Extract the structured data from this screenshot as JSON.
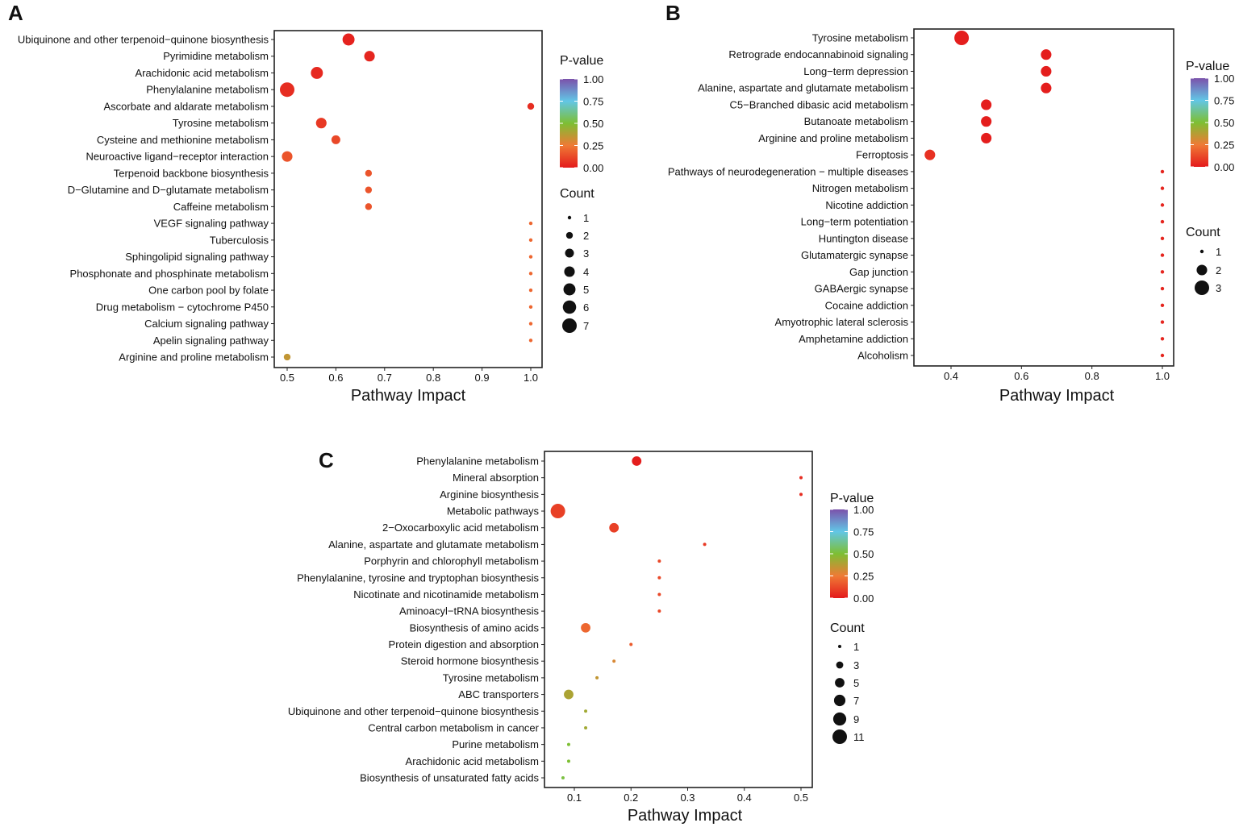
{
  "chart_data": [
    {
      "type": "scatter",
      "panel": "A",
      "xlabel": "Pathway Impact",
      "xlim": [
        0.47,
        1.02
      ],
      "xticks": [
        0.5,
        0.6,
        0.7,
        0.8,
        0.9,
        1.0
      ],
      "xtick_labels": [
        "0.5",
        "0.6",
        "0.7",
        "0.8",
        "0.9",
        "1.0"
      ],
      "color_legend": {
        "title": "P-value",
        "ticks": [
          "1.00",
          "0.75",
          "0.50",
          "0.25",
          "0.00"
        ]
      },
      "size_legend": {
        "title": "Count",
        "values": [
          1,
          2,
          3,
          4,
          5,
          6,
          7
        ]
      },
      "points": [
        {
          "pathway": "Ubiquinone and other terpenoid−quinone biosynthesis",
          "impact": 0.626,
          "count": 5,
          "p": 0.02
        },
        {
          "pathway": "Pyrimidine metabolism",
          "impact": 0.669,
          "count": 4,
          "p": 0.03
        },
        {
          "pathway": "Arachidonic acid metabolism",
          "impact": 0.561,
          "count": 5,
          "p": 0.04
        },
        {
          "pathway": "Phenylalanine metabolism",
          "impact": 0.5,
          "count": 7,
          "p": 0.05
        },
        {
          "pathway": "Ascorbate and aldarate metabolism",
          "impact": 1.0,
          "count": 2,
          "p": 0.05
        },
        {
          "pathway": "Tyrosine metabolism",
          "impact": 0.57,
          "count": 4,
          "p": 0.08
        },
        {
          "pathway": "Cysteine and methionine metabolism",
          "impact": 0.6,
          "count": 3,
          "p": 0.12
        },
        {
          "pathway": "Neuroactive ligand−receptor interaction",
          "impact": 0.5,
          "count": 4,
          "p": 0.15
        },
        {
          "pathway": "Terpenoid backbone biosynthesis",
          "impact": 0.667,
          "count": 2,
          "p": 0.15
        },
        {
          "pathway": "D−Glutamine and D−glutamate metabolism",
          "impact": 0.667,
          "count": 2,
          "p": 0.15
        },
        {
          "pathway": "Caffeine metabolism",
          "impact": 0.667,
          "count": 2,
          "p": 0.15
        },
        {
          "pathway": "VEGF signaling pathway",
          "impact": 1.0,
          "count": 1,
          "p": 0.2
        },
        {
          "pathway": "Tuberculosis",
          "impact": 1.0,
          "count": 1,
          "p": 0.2
        },
        {
          "pathway": "Sphingolipid signaling pathway",
          "impact": 1.0,
          "count": 1,
          "p": 0.2
        },
        {
          "pathway": "Phosphonate and phosphinate metabolism",
          "impact": 1.0,
          "count": 1,
          "p": 0.2
        },
        {
          "pathway": "One carbon pool by folate",
          "impact": 1.0,
          "count": 1,
          "p": 0.2
        },
        {
          "pathway": "Drug metabolism − cytochrome P450",
          "impact": 1.0,
          "count": 1,
          "p": 0.2
        },
        {
          "pathway": "Calcium signaling pathway",
          "impact": 1.0,
          "count": 1,
          "p": 0.2
        },
        {
          "pathway": "Apelin signaling pathway",
          "impact": 1.0,
          "count": 1,
          "p": 0.2
        },
        {
          "pathway": "Arginine and proline metabolism",
          "impact": 0.5,
          "count": 2,
          "p": 0.35
        }
      ]
    },
    {
      "type": "scatter",
      "panel": "B",
      "xlabel": "Pathway Impact",
      "xlim": [
        0.31,
        1.03
      ],
      "xticks": [
        0.4,
        0.6,
        0.8,
        1.0
      ],
      "xtick_labels": [
        "0.4",
        "0.6",
        "0.8",
        "1.0"
      ],
      "color_legend": {
        "title": "P-value",
        "ticks": [
          "1.00",
          "0.75",
          "0.50",
          "0.25",
          "0.00"
        ]
      },
      "size_legend": {
        "title": "Count",
        "values": [
          1,
          2,
          3
        ]
      },
      "points": [
        {
          "pathway": "Tyrosine metabolism",
          "impact": 0.43,
          "count": 3,
          "p": 0.01
        },
        {
          "pathway": "Retrograde endocannabinoid signaling",
          "impact": 0.67,
          "count": 2,
          "p": 0.01
        },
        {
          "pathway": "Long−term depression",
          "impact": 0.67,
          "count": 2,
          "p": 0.01
        },
        {
          "pathway": "Alanine, aspartate and glutamate metabolism",
          "impact": 0.67,
          "count": 2,
          "p": 0.01
        },
        {
          "pathway": "C5−Branched dibasic acid metabolism",
          "impact": 0.5,
          "count": 2,
          "p": 0.01
        },
        {
          "pathway": "Butanoate metabolism",
          "impact": 0.5,
          "count": 2,
          "p": 0.01
        },
        {
          "pathway": "Arginine and proline metabolism",
          "impact": 0.5,
          "count": 2,
          "p": 0.01
        },
        {
          "pathway": "Ferroptosis",
          "impact": 0.34,
          "count": 2,
          "p": 0.06
        },
        {
          "pathway": "Pathways of neurodegeneration − multiple diseases",
          "impact": 1.0,
          "count": 1,
          "p": 0.03
        },
        {
          "pathway": "Nitrogen metabolism",
          "impact": 1.0,
          "count": 1,
          "p": 0.03
        },
        {
          "pathway": "Nicotine addiction",
          "impact": 1.0,
          "count": 1,
          "p": 0.03
        },
        {
          "pathway": "Long−term potentiation",
          "impact": 1.0,
          "count": 1,
          "p": 0.03
        },
        {
          "pathway": "Huntington disease",
          "impact": 1.0,
          "count": 1,
          "p": 0.03
        },
        {
          "pathway": "Glutamatergic synapse",
          "impact": 1.0,
          "count": 1,
          "p": 0.03
        },
        {
          "pathway": "Gap junction",
          "impact": 1.0,
          "count": 1,
          "p": 0.03
        },
        {
          "pathway": "GABAergic synapse",
          "impact": 1.0,
          "count": 1,
          "p": 0.03
        },
        {
          "pathway": "Cocaine addiction",
          "impact": 1.0,
          "count": 1,
          "p": 0.03
        },
        {
          "pathway": "Amyotrophic lateral sclerosis",
          "impact": 1.0,
          "count": 1,
          "p": 0.03
        },
        {
          "pathway": "Amphetamine addiction",
          "impact": 1.0,
          "count": 1,
          "p": 0.03
        },
        {
          "pathway": "Alcoholism",
          "impact": 1.0,
          "count": 1,
          "p": 0.03
        }
      ]
    },
    {
      "type": "scatter",
      "panel": "C",
      "xlabel": "Pathway Impact",
      "xlim": [
        0.05,
        0.52
      ],
      "xticks": [
        0.1,
        0.2,
        0.3,
        0.4,
        0.5
      ],
      "xtick_labels": [
        "0.1",
        "0.2",
        "0.3",
        "0.4",
        "0.5"
      ],
      "color_legend": {
        "title": "P-value",
        "ticks": [
          "1.00",
          "0.75",
          "0.50",
          "0.25",
          "0.00"
        ]
      },
      "size_legend": {
        "title": "Count",
        "values": [
          1,
          3,
          5,
          7,
          9,
          11
        ]
      },
      "points": [
        {
          "pathway": "Phenylalanine metabolism",
          "impact": 0.21,
          "count": 5,
          "p": 0.01
        },
        {
          "pathway": "Mineral absorption",
          "impact": 0.5,
          "count": 1,
          "p": 0.05
        },
        {
          "pathway": "Arginine biosynthesis",
          "impact": 0.5,
          "count": 1,
          "p": 0.05
        },
        {
          "pathway": "Metabolic pathways",
          "impact": 0.071,
          "count": 11,
          "p": 0.1
        },
        {
          "pathway": "2−Oxocarboxylic acid metabolism",
          "impact": 0.17,
          "count": 5,
          "p": 0.1
        },
        {
          "pathway": "Alanine, aspartate and glutamate metabolism",
          "impact": 0.33,
          "count": 1,
          "p": 0.08
        },
        {
          "pathway": "Porphyrin and chlorophyll metabolism",
          "impact": 0.25,
          "count": 1,
          "p": 0.12
        },
        {
          "pathway": "Phenylalanine, tyrosine and tryptophan biosynthesis",
          "impact": 0.25,
          "count": 1,
          "p": 0.12
        },
        {
          "pathway": "Nicotinate and nicotinamide metabolism",
          "impact": 0.25,
          "count": 1,
          "p": 0.12
        },
        {
          "pathway": "Aminoacyl−tRNA biosynthesis",
          "impact": 0.25,
          "count": 1,
          "p": 0.12
        },
        {
          "pathway": "Biosynthesis of amino acids",
          "impact": 0.12,
          "count": 5,
          "p": 0.2
        },
        {
          "pathway": "Protein digestion and absorption",
          "impact": 0.2,
          "count": 1,
          "p": 0.17
        },
        {
          "pathway": "Steroid hormone biosynthesis",
          "impact": 0.17,
          "count": 1,
          "p": 0.3
        },
        {
          "pathway": "Tyrosine metabolism",
          "impact": 0.14,
          "count": 1,
          "p": 0.35
        },
        {
          "pathway": "ABC transporters",
          "impact": 0.09,
          "count": 5,
          "p": 0.4
        },
        {
          "pathway": "Ubiquinone and other terpenoid−quinone biosynthesis",
          "impact": 0.12,
          "count": 1,
          "p": 0.42
        },
        {
          "pathway": "Central carbon metabolism in cancer",
          "impact": 0.12,
          "count": 1,
          "p": 0.42
        },
        {
          "pathway": "Purine metabolism",
          "impact": 0.09,
          "count": 1,
          "p": 0.5
        },
        {
          "pathway": "Arachidonic acid metabolism",
          "impact": 0.09,
          "count": 1,
          "p": 0.5
        },
        {
          "pathway": "Biosynthesis of unsaturated fatty acids",
          "impact": 0.08,
          "count": 1,
          "p": 0.52
        }
      ]
    }
  ],
  "colors": {
    "p0": "#e41a1c",
    "p25": "#ef7a35",
    "p50": "#7dbf33",
    "p75": "#62c6e6",
    "p100": "#7b52ab"
  }
}
